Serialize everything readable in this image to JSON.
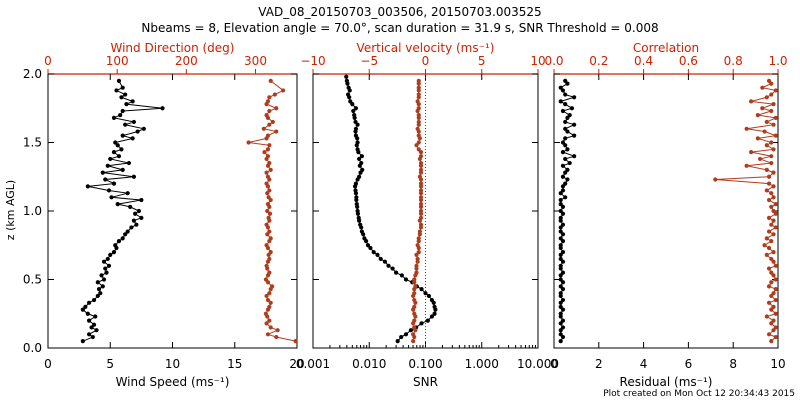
{
  "header": {
    "title": "VAD_08_20150703_003506, 20150703.003525",
    "subtitle": "Nbeams = 8, Elevation angle = 70.0°, scan duration = 31.9 s, SNR Threshold = 0.008"
  },
  "footer": {
    "plot_created": "Plot created on Mon Oct 12 20:34:43 2015"
  },
  "colors": {
    "primary_series": "#000000",
    "secondary_series": "#b03c1e",
    "top_axis": "#cc2200",
    "reference_line": "#cc2200"
  },
  "chart_data": [
    {
      "type": "line",
      "ylabel": "z (km AGL)",
      "ylim": [
        0,
        2
      ],
      "yticks": [
        "0.0",
        "0.5",
        "1.0",
        "1.5",
        "2.0"
      ],
      "bottom_axis": {
        "label": "Wind Speed (ms⁻¹)",
        "range": [
          0,
          20
        ],
        "ticks": [
          "0",
          "5",
          "10",
          "15",
          "20"
        ]
      },
      "top_axis": {
        "label": "Wind Direction (deg)",
        "range": [
          0,
          360
        ],
        "ticks": [
          "0",
          "100",
          "200",
          "300"
        ]
      },
      "series": [
        {
          "axis": "bottom",
          "color": "#000000",
          "z": [
            0.05,
            0.08,
            0.1,
            0.13,
            0.15,
            0.17,
            0.2,
            0.23,
            0.25,
            0.28,
            0.3,
            0.33,
            0.35,
            0.38,
            0.4,
            0.43,
            0.45,
            0.48,
            0.5,
            0.53,
            0.55,
            0.58,
            0.6,
            0.63,
            0.65,
            0.68,
            0.7,
            0.73,
            0.75,
            0.78,
            0.8,
            0.83,
            0.85,
            0.88,
            0.9,
            0.93,
            0.95,
            0.98,
            1.0,
            1.03,
            1.05,
            1.08,
            1.1,
            1.13,
            1.15,
            1.18,
            1.2,
            1.23,
            1.25,
            1.28,
            1.3,
            1.33,
            1.35,
            1.38,
            1.4,
            1.43,
            1.45,
            1.48,
            1.5,
            1.53,
            1.55,
            1.58,
            1.6,
            1.63,
            1.65,
            1.68,
            1.7,
            1.73,
            1.75,
            1.78,
            1.8,
            1.83,
            1.85,
            1.88,
            1.9,
            1.95
          ],
          "values": [
            2.8,
            3.6,
            3.3,
            3.9,
            3.5,
            3.7,
            3.3,
            3.8,
            3.2,
            2.8,
            3.0,
            3.3,
            3.7,
            4.0,
            4.2,
            4.1,
            4.4,
            4.0,
            4.5,
            4.3,
            4.7,
            4.6,
            4.9,
            4.5,
            4.8,
            5.0,
            5.3,
            5.5,
            5.4,
            5.7,
            6.0,
            6.2,
            6.4,
            6.7,
            7.1,
            6.9,
            7.5,
            7.0,
            7.3,
            6.6,
            5.6,
            7.5,
            5.1,
            6.4,
            4.9,
            3.2,
            5.3,
            4.6,
            6.9,
            4.4,
            6.0,
            4.8,
            6.5,
            5.0,
            5.7,
            5.3,
            5.9,
            5.6,
            5.4,
            6.8,
            6.0,
            7.2,
            7.7,
            6.2,
            6.9,
            5.3,
            5.8,
            6.0,
            9.2,
            6.3,
            6.8,
            5.9,
            6.2,
            5.5,
            6.0,
            5.7
          ]
        },
        {
          "axis": "top",
          "color": "#b03c1e",
          "z": [
            0.05,
            0.08,
            0.1,
            0.13,
            0.15,
            0.18,
            0.2,
            0.23,
            0.25,
            0.28,
            0.3,
            0.33,
            0.35,
            0.38,
            0.4,
            0.43,
            0.45,
            0.48,
            0.5,
            0.53,
            0.55,
            0.58,
            0.6,
            0.63,
            0.65,
            0.68,
            0.7,
            0.73,
            0.75,
            0.78,
            0.8,
            0.83,
            0.85,
            0.88,
            0.9,
            0.93,
            0.95,
            0.98,
            1.0,
            1.03,
            1.05,
            1.08,
            1.1,
            1.13,
            1.15,
            1.18,
            1.2,
            1.23,
            1.25,
            1.28,
            1.3,
            1.33,
            1.35,
            1.38,
            1.4,
            1.43,
            1.45,
            1.48,
            1.5,
            1.53,
            1.55,
            1.58,
            1.6,
            1.63,
            1.65,
            1.68,
            1.7,
            1.73,
            1.75,
            1.78,
            1.8,
            1.83,
            1.85,
            1.88,
            1.95
          ],
          "values": [
            358,
            330,
            318,
            332,
            322,
            316,
            320,
            317,
            315,
            318,
            320,
            322,
            318,
            316,
            320,
            322,
            324,
            318,
            315,
            318,
            320,
            317,
            316,
            318,
            320,
            319,
            322,
            318,
            316,
            320,
            322,
            317,
            320,
            318,
            316,
            320,
            319,
            321,
            317,
            320,
            318,
            322,
            319,
            317,
            320,
            318,
            316,
            320,
            318,
            316,
            322,
            318,
            320,
            316,
            318,
            313,
            318,
            320,
            290,
            316,
            318,
            330,
            312,
            320,
            325,
            318,
            316,
            320,
            330,
            316,
            318,
            320,
            328,
            340,
            322
          ]
        }
      ]
    },
    {
      "type": "line",
      "bottom_axis": {
        "label": "SNR",
        "scale": "log",
        "range": [
          0.001,
          10
        ],
        "ticks": [
          "0.001",
          "0.010",
          "0.100",
          "1.000",
          "10.000"
        ]
      },
      "top_axis": {
        "label": "Vertical velocity (ms⁻¹)",
        "range": [
          -10,
          10
        ],
        "ticks": [
          "−10",
          "−5",
          "0",
          "5",
          "10"
        ]
      },
      "reference_line": {
        "axis": "top",
        "value": 0,
        "style": "dotted"
      },
      "series": [
        {
          "axis": "bottom",
          "color": "#000000",
          "z": [
            0.05,
            0.08,
            0.1,
            0.13,
            0.15,
            0.18,
            0.2,
            0.23,
            0.25,
            0.28,
            0.3,
            0.33,
            0.35,
            0.38,
            0.4,
            0.43,
            0.45,
            0.48,
            0.5,
            0.53,
            0.55,
            0.58,
            0.6,
            0.63,
            0.65,
            0.68,
            0.7,
            0.73,
            0.75,
            0.78,
            0.8,
            0.83,
            0.85,
            0.88,
            0.9,
            0.93,
            0.95,
            0.98,
            1.0,
            1.03,
            1.05,
            1.08,
            1.1,
            1.13,
            1.15,
            1.18,
            1.2,
            1.23,
            1.25,
            1.28,
            1.3,
            1.33,
            1.35,
            1.38,
            1.4,
            1.43,
            1.45,
            1.48,
            1.5,
            1.53,
            1.55,
            1.58,
            1.6,
            1.63,
            1.65,
            1.68,
            1.7,
            1.73,
            1.75,
            1.78,
            1.8,
            1.83,
            1.85,
            1.88,
            1.9,
            1.93,
            1.95,
            1.98
          ],
          "values": [
            0.032,
            0.037,
            0.045,
            0.055,
            0.068,
            0.085,
            0.11,
            0.13,
            0.145,
            0.15,
            0.145,
            0.14,
            0.13,
            0.115,
            0.1,
            0.085,
            0.07,
            0.058,
            0.045,
            0.038,
            0.03,
            0.026,
            0.022,
            0.019,
            0.016,
            0.014,
            0.012,
            0.0105,
            0.0095,
            0.0088,
            0.0082,
            0.0078,
            0.0074,
            0.0072,
            0.0069,
            0.0066,
            0.0065,
            0.0063,
            0.0062,
            0.0061,
            0.006,
            0.0059,
            0.0059,
            0.0058,
            0.0057,
            0.0056,
            0.0058,
            0.0062,
            0.0066,
            0.007,
            0.0075,
            0.0068,
            0.0072,
            0.0066,
            0.0074,
            0.0064,
            0.0062,
            0.006,
            0.0062,
            0.0061,
            0.0058,
            0.0057,
            0.0058,
            0.0062,
            0.0057,
            0.0055,
            0.0054,
            0.0052,
            0.0058,
            0.005,
            0.0046,
            0.0044,
            0.0042,
            0.0045,
            0.0043,
            0.0041,
            0.004,
            0.0039
          ]
        },
        {
          "axis": "top",
          "color": "#b03c1e",
          "z": [
            0.05,
            0.08,
            0.1,
            0.13,
            0.15,
            0.18,
            0.2,
            0.23,
            0.25,
            0.28,
            0.3,
            0.33,
            0.35,
            0.38,
            0.4,
            0.43,
            0.45,
            0.48,
            0.5,
            0.53,
            0.55,
            0.58,
            0.6,
            0.63,
            0.65,
            0.68,
            0.7,
            0.73,
            0.75,
            0.78,
            0.8,
            0.83,
            0.85,
            0.88,
            0.9,
            0.93,
            0.95,
            0.98,
            1.0,
            1.03,
            1.05,
            1.08,
            1.1,
            1.13,
            1.15,
            1.18,
            1.2,
            1.23,
            1.25,
            1.28,
            1.3,
            1.33,
            1.35,
            1.38,
            1.4,
            1.43,
            1.45,
            1.48,
            1.5,
            1.53,
            1.55,
            1.58,
            1.6,
            1.63,
            1.65,
            1.68,
            1.7,
            1.73,
            1.75,
            1.78,
            1.8,
            1.83,
            1.85,
            1.88,
            1.9,
            1.93,
            1.95
          ],
          "values": [
            -1.1,
            -1.0,
            -1.1,
            -0.9,
            -1.0,
            -1.1,
            -1.0,
            -0.9,
            -1.0,
            -1.1,
            -1.0,
            -0.9,
            -1.0,
            -1.1,
            -1.0,
            -1.0,
            -0.9,
            -1.0,
            -1.0,
            -0.9,
            -0.8,
            -0.8,
            -0.8,
            -0.7,
            -0.7,
            -0.8,
            -0.6,
            -0.6,
            -0.7,
            -0.6,
            -0.6,
            -0.5,
            -0.5,
            -0.4,
            -0.4,
            -0.5,
            -0.4,
            -0.4,
            -0.4,
            -0.4,
            -0.4,
            -0.4,
            -0.4,
            -0.4,
            -0.4,
            -0.4,
            -0.4,
            -0.4,
            -0.5,
            -0.4,
            -0.4,
            -0.4,
            -0.4,
            -0.5,
            -0.4,
            -0.4,
            -0.6,
            -0.8,
            -0.6,
            -0.5,
            -0.6,
            -0.6,
            -0.7,
            -0.6,
            -0.6,
            -0.6,
            -0.6,
            -0.7,
            -0.6,
            -0.6,
            -0.7,
            -0.6,
            -0.6,
            -0.6,
            -0.6,
            -0.6,
            -0.6
          ]
        }
      ]
    },
    {
      "type": "line",
      "bottom_axis": {
        "label": "Residual (ms⁻¹)",
        "range": [
          0,
          10
        ],
        "ticks": [
          "0",
          "2",
          "4",
          "6",
          "8",
          "10"
        ]
      },
      "top_axis": {
        "label": "Correlation",
        "range": [
          0,
          1
        ],
        "ticks": [
          "0.0",
          "0.2",
          "0.4",
          "0.6",
          "0.8",
          "1.0"
        ]
      },
      "series": [
        {
          "axis": "bottom",
          "color": "#000000",
          "z": [
            0.05,
            0.08,
            0.1,
            0.13,
            0.15,
            0.18,
            0.2,
            0.23,
            0.25,
            0.28,
            0.3,
            0.33,
            0.35,
            0.38,
            0.4,
            0.43,
            0.45,
            0.48,
            0.5,
            0.53,
            0.55,
            0.58,
            0.6,
            0.63,
            0.65,
            0.68,
            0.7,
            0.73,
            0.75,
            0.78,
            0.8,
            0.83,
            0.85,
            0.88,
            0.9,
            0.93,
            0.95,
            0.98,
            1.0,
            1.03,
            1.05,
            1.08,
            1.1,
            1.13,
            1.15,
            1.18,
            1.2,
            1.23,
            1.25,
            1.28,
            1.3,
            1.33,
            1.35,
            1.38,
            1.4,
            1.43,
            1.45,
            1.48,
            1.5,
            1.53,
            1.55,
            1.58,
            1.6,
            1.63,
            1.65,
            1.68,
            1.7,
            1.73,
            1.75,
            1.78,
            1.8,
            1.83,
            1.85,
            1.88,
            1.9,
            1.93,
            1.95
          ],
          "values": [
            0.3,
            0.4,
            0.3,
            0.3,
            0.4,
            0.3,
            0.4,
            0.3,
            0.3,
            0.4,
            0.3,
            0.3,
            0.4,
            0.3,
            0.3,
            0.4,
            0.3,
            0.4,
            0.3,
            0.3,
            0.4,
            0.3,
            0.3,
            0.4,
            0.3,
            0.3,
            0.4,
            0.3,
            0.3,
            0.4,
            0.3,
            0.4,
            0.3,
            0.3,
            0.4,
            0.3,
            0.3,
            0.4,
            0.3,
            0.4,
            0.3,
            0.3,
            0.5,
            0.3,
            0.4,
            0.4,
            0.5,
            0.6,
            0.4,
            0.5,
            0.6,
            0.4,
            0.7,
            0.5,
            0.9,
            0.4,
            0.6,
            0.5,
            0.4,
            0.5,
            0.9,
            0.6,
            0.5,
            0.9,
            0.5,
            0.6,
            0.7,
            0.4,
            0.8,
            0.5,
            0.3,
            0.9,
            0.5,
            0.4,
            0.3,
            0.6,
            0.5
          ]
        },
        {
          "axis": "top",
          "color": "#b03c1e",
          "z": [
            0.05,
            0.08,
            0.1,
            0.13,
            0.15,
            0.18,
            0.2,
            0.23,
            0.25,
            0.28,
            0.3,
            0.33,
            0.35,
            0.38,
            0.4,
            0.43,
            0.45,
            0.48,
            0.5,
            0.53,
            0.55,
            0.58,
            0.6,
            0.63,
            0.65,
            0.68,
            0.7,
            0.73,
            0.75,
            0.78,
            0.8,
            0.83,
            0.85,
            0.88,
            0.9,
            0.93,
            0.95,
            0.98,
            1.0,
            1.03,
            1.05,
            1.08,
            1.1,
            1.13,
            1.15,
            1.18,
            1.2,
            1.23,
            1.25,
            1.28,
            1.3,
            1.33,
            1.35,
            1.38,
            1.4,
            1.43,
            1.45,
            1.48,
            1.5,
            1.53,
            1.55,
            1.58,
            1.6,
            1.63,
            1.65,
            1.68,
            1.7,
            1.73,
            1.75,
            1.78,
            1.8,
            1.83,
            1.85,
            1.88,
            1.9,
            1.93,
            1.95
          ],
          "values": [
            0.97,
            0.99,
            0.96,
            0.98,
            0.99,
            0.97,
            0.98,
            0.95,
            0.99,
            0.97,
            0.98,
            0.96,
            0.99,
            0.97,
            0.98,
            0.99,
            0.96,
            0.97,
            0.99,
            0.98,
            0.97,
            0.96,
            0.99,
            0.98,
            0.97,
            0.95,
            0.98,
            0.96,
            0.94,
            0.97,
            0.95,
            0.98,
            0.96,
            0.99,
            0.97,
            0.98,
            0.96,
            0.99,
            0.98,
            0.97,
            0.99,
            0.96,
            0.98,
            0.97,
            0.95,
            0.98,
            0.96,
            0.72,
            0.96,
            0.98,
            0.95,
            0.86,
            0.97,
            0.92,
            0.97,
            0.88,
            0.98,
            0.95,
            0.97,
            0.91,
            0.99,
            0.94,
            0.86,
            0.98,
            0.95,
            0.99,
            0.91,
            0.97,
            0.93,
            0.98,
            0.88,
            0.95,
            0.97,
            0.99,
            0.93,
            0.97,
            0.96
          ]
        }
      ]
    }
  ]
}
